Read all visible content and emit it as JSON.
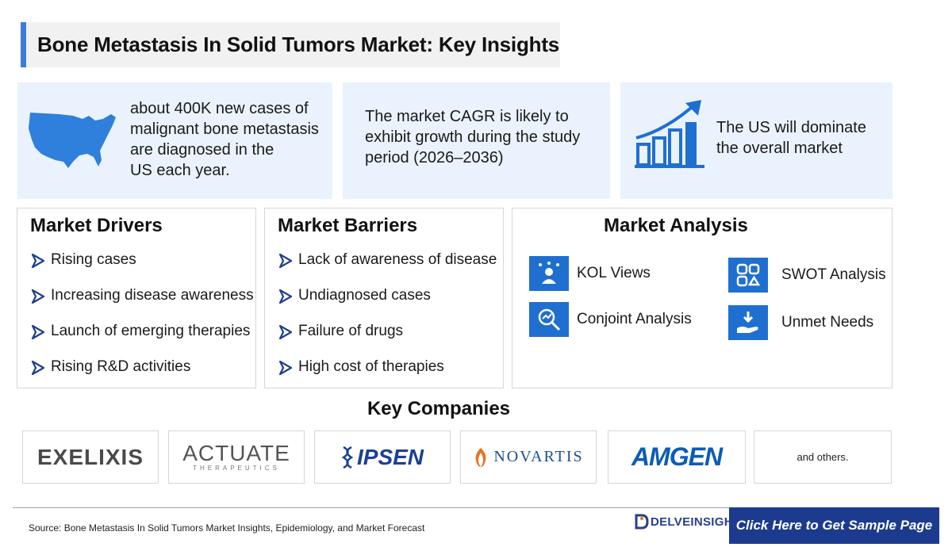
{
  "title": "Bone Metastasis In Solid Tumors Market: Key Insights",
  "stats": [
    {
      "lines": [
        "about 400K new cases of",
        "malignant bone metastasis",
        "are diagnosed in the",
        "US each year."
      ],
      "icon": "us-map-icon"
    },
    {
      "lines": [
        "The market CAGR is likely to",
        "exhibit growth during the study",
        "period (2026–2036)"
      ]
    },
    {
      "lines": [
        "The US will dominate",
        "the overall market"
      ],
      "icon": "growth-chart-icon"
    }
  ],
  "drivers": {
    "title": "Market Drivers",
    "items": [
      "Rising cases",
      "Increasing disease awareness",
      "Launch of emerging therapies",
      "Rising R&D activities"
    ]
  },
  "barriers": {
    "title": "Market Barriers",
    "items": [
      "Lack of awareness of disease",
      "Undiagnosed cases",
      "Failure of drugs",
      "High cost of therapies"
    ]
  },
  "analysis": {
    "title": "Market Analysis",
    "items": [
      {
        "label": "KOL Views",
        "icon": "kol-icon"
      },
      {
        "label": "SWOT Analysis",
        "icon": "swot-icon"
      },
      {
        "label": "Conjoint Analysis",
        "icon": "conjoint-icon"
      },
      {
        "label": "Unmet Needs",
        "icon": "unmet-needs-icon"
      }
    ]
  },
  "companies": {
    "title": "Key Companies",
    "logos": [
      "EXELIXIS",
      "ACTUATE",
      "THERAPEUTICS",
      "IPSEN",
      "NOVARTIS",
      "AMGEN"
    ],
    "others": "and others."
  },
  "footer": {
    "source": "Source: Bone Metastasis In Solid Tumors Market Insights, Epidemiology, and Market Forecast",
    "brand": "DELVEINSIGHT",
    "cta": "Click Here to Get Sample Page"
  },
  "colors": {
    "accent": "#3b7ddd",
    "icon_blue": "#1f6fd1",
    "light_panel": "#eaf2fd",
    "cta": "#1c3b8f"
  }
}
